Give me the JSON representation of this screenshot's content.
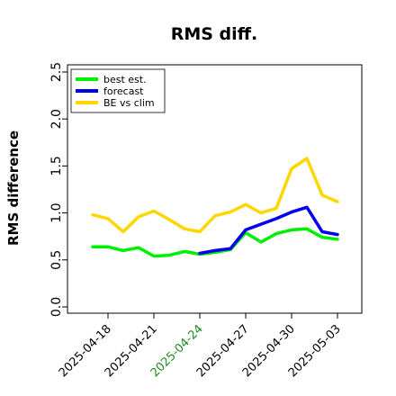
{
  "chart_data": {
    "type": "line",
    "title": "RMS diff.",
    "xlabel": "",
    "ylabel": "RMS difference",
    "ylim": [
      0.0,
      2.5
    ],
    "yticks": [
      "0.0",
      "0.5",
      "1.0",
      "1.5",
      "2.0",
      "2.5"
    ],
    "grid": false,
    "legend_position": "top-left",
    "x_tick_labels": [
      "2025-04-18",
      "2025-04-21",
      "2025-04-24",
      "2025-04-27",
      "2025-04-30",
      "2025-05-03"
    ],
    "highlighted_tick_color": "#228b22",
    "highlighted_tick": "2025-04-24",
    "series": [
      {
        "name": "best est.",
        "color": "#00ee00",
        "x": [
          "2025-04-17",
          "2025-04-18",
          "2025-04-19",
          "2025-04-20",
          "2025-04-21",
          "2025-04-22",
          "2025-04-23",
          "2025-04-24",
          "2025-04-25",
          "2025-04-26",
          "2025-04-27",
          "2025-04-28",
          "2025-04-29",
          "2025-04-30",
          "2025-05-01",
          "2025-05-02",
          "2025-05-03"
        ],
        "values": [
          0.64,
          0.64,
          0.6,
          0.63,
          0.54,
          0.55,
          0.59,
          0.56,
          0.58,
          0.61,
          0.79,
          0.69,
          0.78,
          0.82,
          0.83,
          0.74,
          0.72
        ]
      },
      {
        "name": "forecast",
        "color": "#0000ee",
        "x": [
          "2025-04-24",
          "2025-04-25",
          "2025-04-26",
          "2025-04-27",
          "2025-04-28",
          "2025-04-29",
          "2025-04-30",
          "2025-05-01",
          "2025-05-02",
          "2025-05-03"
        ],
        "values": [
          0.57,
          0.6,
          0.62,
          0.82,
          0.88,
          0.94,
          1.01,
          1.06,
          0.8,
          0.77
        ]
      },
      {
        "name": "BE vs clim",
        "color": "#ffd700",
        "x": [
          "2025-04-17",
          "2025-04-18",
          "2025-04-19",
          "2025-04-20",
          "2025-04-21",
          "2025-04-22",
          "2025-04-23",
          "2025-04-24",
          "2025-04-25",
          "2025-04-26",
          "2025-04-27",
          "2025-04-28",
          "2025-04-29",
          "2025-04-30",
          "2025-05-01",
          "2025-05-02",
          "2025-05-03"
        ],
        "values": [
          0.98,
          0.94,
          0.8,
          0.96,
          1.02,
          0.93,
          0.83,
          0.8,
          0.97,
          1.01,
          1.09,
          1.0,
          1.05,
          1.47,
          1.58,
          1.19,
          1.12
        ]
      }
    ]
  }
}
